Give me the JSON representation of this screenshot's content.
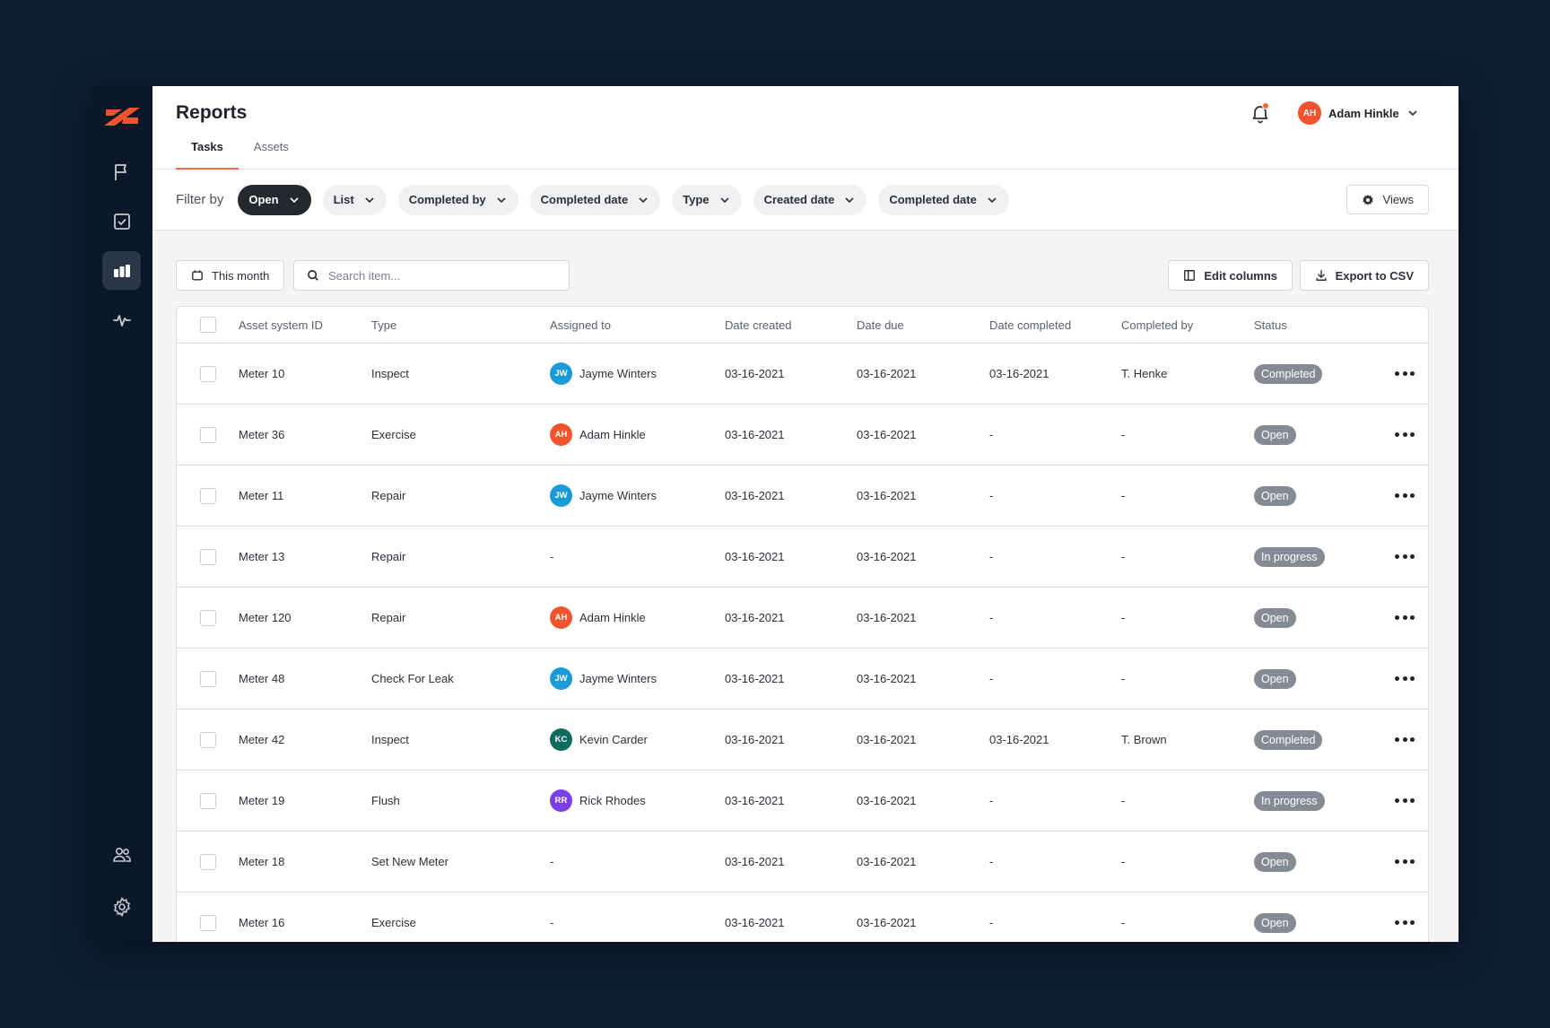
{
  "colors": {
    "accent": "#f26a3d",
    "sidebar": "#0c1728",
    "background": "#0e1e33",
    "badge": "#858b94"
  },
  "sidebar": {
    "items": [
      {
        "icon": "flag-icon"
      },
      {
        "icon": "checkbox-icon"
      },
      {
        "icon": "bar-chart-icon",
        "active": true
      },
      {
        "icon": "pulse-icon"
      },
      {
        "icon": "users-icon"
      },
      {
        "icon": "gear-icon"
      }
    ]
  },
  "header": {
    "title": "Reports",
    "tabs": [
      {
        "label": "Tasks",
        "active": true
      },
      {
        "label": "Assets"
      }
    ],
    "user": {
      "initials": "AH",
      "name": "Adam Hinkle"
    }
  },
  "filters": {
    "label": "Filter by",
    "chips": [
      "Open",
      "List",
      "Completed by",
      "Completed date",
      "Type",
      "Created date",
      "Completed date"
    ],
    "views_label": "Views"
  },
  "toolbar": {
    "date_label": "This month",
    "search_placeholder": "Search item...",
    "edit_columns_label": "Edit columns",
    "export_label": "Export to CSV"
  },
  "table": {
    "columns": [
      "Asset system ID",
      "Type",
      "Assigned to",
      "Date created",
      "Date due",
      "Date completed",
      "Completed by",
      "Status"
    ],
    "rows": [
      {
        "id": "Meter 10",
        "type": "Inspect",
        "initials": "JW",
        "avatar_color": "#1a9bd7",
        "assignee": "Jayme Winters",
        "created": "03-16-2021",
        "due": "03-16-2021",
        "completed": "03-16-2021",
        "completed_by": "T. Henke",
        "status": "Completed"
      },
      {
        "id": "Meter 36",
        "type": "Exercise",
        "initials": "AH",
        "avatar_color": "#f0532d",
        "assignee": "Adam Hinkle",
        "created": "03-16-2021",
        "due": "03-16-2021",
        "completed": "-",
        "completed_by": "-",
        "status": "Open"
      },
      {
        "id": "Meter 11",
        "type": "Repair",
        "initials": "JW",
        "avatar_color": "#1a9bd7",
        "assignee": "Jayme Winters",
        "created": "03-16-2021",
        "due": "03-16-2021",
        "completed": "-",
        "completed_by": "-",
        "status": "Open"
      },
      {
        "id": "Meter 13",
        "type": "Repair",
        "initials": "",
        "avatar_color": "",
        "assignee": "-",
        "created": "03-16-2021",
        "due": "03-16-2021",
        "completed": "-",
        "completed_by": "-",
        "status": "In progress"
      },
      {
        "id": "Meter 120",
        "type": "Repair",
        "initials": "AH",
        "avatar_color": "#f0532d",
        "assignee": "Adam Hinkle",
        "created": "03-16-2021",
        "due": "03-16-2021",
        "completed": "-",
        "completed_by": "-",
        "status": "Open"
      },
      {
        "id": "Meter 48",
        "type": "Check For Leak",
        "initials": "JW",
        "avatar_color": "#1a9bd7",
        "assignee": "Jayme Winters",
        "created": "03-16-2021",
        "due": "03-16-2021",
        "completed": "-",
        "completed_by": "-",
        "status": "Open"
      },
      {
        "id": "Meter 42",
        "type": "Inspect",
        "initials": "KC",
        "avatar_color": "#0f6b5c",
        "assignee": "Kevin Carder",
        "created": "03-16-2021",
        "due": "03-16-2021",
        "completed": "03-16-2021",
        "completed_by": "T. Brown",
        "status": "Completed"
      },
      {
        "id": "Meter 19",
        "type": "Flush",
        "initials": "RR",
        "avatar_color": "#7b3fe4",
        "assignee": "Rick Rhodes",
        "created": "03-16-2021",
        "due": "03-16-2021",
        "completed": "-",
        "completed_by": "-",
        "status": "In progress"
      },
      {
        "id": "Meter 18",
        "type": "Set New Meter",
        "initials": "",
        "avatar_color": "",
        "assignee": "-",
        "created": "03-16-2021",
        "due": "03-16-2021",
        "completed": "-",
        "completed_by": "-",
        "status": "Open"
      },
      {
        "id": "Meter 16",
        "type": "Exercise",
        "initials": "",
        "avatar_color": "",
        "assignee": "-",
        "created": "03-16-2021",
        "due": "03-16-2021",
        "completed": "-",
        "completed_by": "-",
        "status": "Open"
      }
    ]
  }
}
